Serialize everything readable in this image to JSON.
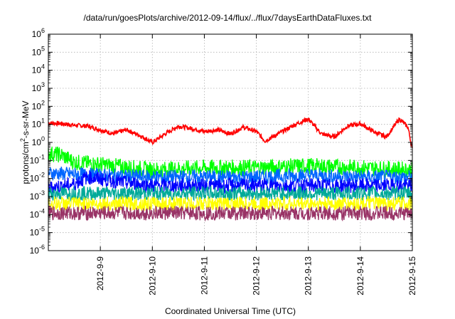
{
  "chart_data": {
    "type": "line",
    "title": "/data/run/goesPlots/archive/2012-09-14/flux/../flux/7daysEarthDataFluxes.txt",
    "xlabel": "Coordinated Universal Time (UTC)",
    "ylabel": "protons/cm²-s-sr-MeV",
    "ylabel_parts": {
      "pre": "protons/cm",
      "sup": "2",
      "post": "-s-sr-MeV"
    },
    "y_scale": "log",
    "ylim": [
      1e-06,
      1000000.0
    ],
    "y_ticks": [
      {
        "value": 1e-06,
        "base": "10",
        "exp": "-6"
      },
      {
        "value": 1e-05,
        "base": "10",
        "exp": "-5"
      },
      {
        "value": 0.0001,
        "base": "10",
        "exp": "-4"
      },
      {
        "value": 0.001,
        "base": "10",
        "exp": "-3"
      },
      {
        "value": 0.01,
        "base": "10",
        "exp": "-2"
      },
      {
        "value": 0.1,
        "base": "10",
        "exp": "-1"
      },
      {
        "value": 1,
        "base": "10",
        "exp": "0"
      },
      {
        "value": 10,
        "base": "10",
        "exp": "1"
      },
      {
        "value": 100,
        "base": "10",
        "exp": "2"
      },
      {
        "value": 1000,
        "base": "10",
        "exp": "3"
      },
      {
        "value": 10000,
        "base": "10",
        "exp": "4"
      },
      {
        "value": 100000,
        "base": "10",
        "exp": "5"
      },
      {
        "value": 1000000,
        "base": "10",
        "exp": "6"
      }
    ],
    "xlim": [
      "2012-09-08T00:00",
      "2012-09-15T00:00"
    ],
    "x_ticks": [
      "2012-9-9",
      "2012-9-10",
      "2012-9-11",
      "2012-9-12",
      "2012-9-13",
      "2012-9-14",
      "2012-9-15"
    ],
    "x_tick_values": [
      "2012-09-09",
      "2012-09-10",
      "2012-09-11",
      "2012-09-12",
      "2012-09-13",
      "2012-09-14",
      "2012-09-15"
    ],
    "grid": true,
    "series": [
      {
        "color": "#ff0000",
        "points": [
          [
            "2012-09-08T00:00",
            12
          ],
          [
            "2012-09-08T06:00",
            11
          ],
          [
            "2012-09-08T12:00",
            9
          ],
          [
            "2012-09-08T18:00",
            8
          ],
          [
            "2012-09-09T00:00",
            5
          ],
          [
            "2012-09-09T06:00",
            3
          ],
          [
            "2012-09-09T12:00",
            5
          ],
          [
            "2012-09-09T18:00",
            2.5
          ],
          [
            "2012-09-10T00:00",
            1.0
          ],
          [
            "2012-09-10T06:00",
            3
          ],
          [
            "2012-09-10T12:00",
            8
          ],
          [
            "2012-09-10T18:00",
            6
          ],
          [
            "2012-09-11T00:00",
            4
          ],
          [
            "2012-09-11T06:00",
            5
          ],
          [
            "2012-09-11T12:00",
            3
          ],
          [
            "2012-09-11T18:00",
            7
          ],
          [
            "2012-09-12T00:00",
            4
          ],
          [
            "2012-09-12T04:00",
            1.2
          ],
          [
            "2012-09-12T12:00",
            4
          ],
          [
            "2012-09-12T18:00",
            10
          ],
          [
            "2012-09-13T00:00",
            20
          ],
          [
            "2012-09-13T06:00",
            3
          ],
          [
            "2012-09-13T12:00",
            2
          ],
          [
            "2012-09-13T18:00",
            8
          ],
          [
            "2012-09-14T00:00",
            11
          ],
          [
            "2012-09-14T06:00",
            4
          ],
          [
            "2012-09-14T12:00",
            2
          ],
          [
            "2012-09-14T18:00",
            20
          ],
          [
            "2012-09-14T22:00",
            7
          ],
          [
            "2012-09-15T00:00",
            0.4
          ]
        ]
      },
      {
        "color": "#00ff00",
        "points": [
          [
            "2012-09-08T00:00",
            0.25
          ],
          [
            "2012-09-08T06:00",
            0.2
          ],
          [
            "2012-09-08T12:00",
            0.08
          ],
          [
            "2012-09-09T00:00",
            0.06
          ],
          [
            "2012-09-10T00:00",
            0.03
          ],
          [
            "2012-09-11T00:00",
            0.04
          ],
          [
            "2012-09-12T00:00",
            0.04
          ],
          [
            "2012-09-13T00:00",
            0.05
          ],
          [
            "2012-09-14T00:00",
            0.04
          ],
          [
            "2012-09-15T00:00",
            0.03
          ]
        ]
      },
      {
        "color": "#0066ff",
        "points": [
          [
            "2012-09-08T00:00",
            0.02
          ],
          [
            "2012-09-09T00:00",
            0.015
          ],
          [
            "2012-09-10T00:00",
            0.012
          ],
          [
            "2012-09-11T00:00",
            0.012
          ],
          [
            "2012-09-12T00:00",
            0.012
          ],
          [
            "2012-09-13T00:00",
            0.015
          ],
          [
            "2012-09-14T00:00",
            0.012
          ],
          [
            "2012-09-15T00:00",
            0.012
          ]
        ]
      },
      {
        "color": "#0000ff",
        "points": [
          [
            "2012-09-08T00:00",
            0.003
          ],
          [
            "2012-09-08T12:00",
            0.005
          ],
          [
            "2012-09-08T18:00",
            0.012
          ],
          [
            "2012-09-09T06:00",
            0.007
          ],
          [
            "2012-09-10T00:00",
            0.004
          ],
          [
            "2012-09-11T00:00",
            0.004
          ],
          [
            "2012-09-12T00:00",
            0.004
          ],
          [
            "2012-09-13T00:00",
            0.004
          ],
          [
            "2012-09-14T00:00",
            0.004
          ],
          [
            "2012-09-15T00:00",
            0.004
          ]
        ]
      },
      {
        "color": "#00aa99",
        "points": [
          [
            "2012-09-08T00:00",
            0.0015
          ],
          [
            "2012-09-09T00:00",
            0.0015
          ],
          [
            "2012-09-10T00:00",
            0.0015
          ],
          [
            "2012-09-11T00:00",
            0.0015
          ],
          [
            "2012-09-12T00:00",
            0.0015
          ],
          [
            "2012-09-13T00:00",
            0.0015
          ],
          [
            "2012-09-14T00:00",
            0.0015
          ],
          [
            "2012-09-15T00:00",
            0.0015
          ]
        ]
      },
      {
        "color": "#ffff00",
        "points": [
          [
            "2012-09-08T00:00",
            0.0004
          ],
          [
            "2012-09-09T00:00",
            0.0004
          ],
          [
            "2012-09-10T00:00",
            0.0004
          ],
          [
            "2012-09-11T00:00",
            0.0004
          ],
          [
            "2012-09-12T00:00",
            0.0004
          ],
          [
            "2012-09-13T00:00",
            0.0004
          ],
          [
            "2012-09-14T00:00",
            0.0004
          ],
          [
            "2012-09-15T00:00",
            0.0004
          ]
        ]
      },
      {
        "color": "#993366",
        "points": [
          [
            "2012-09-08T00:00",
            0.00012
          ],
          [
            "2012-09-09T00:00",
            0.00012
          ],
          [
            "2012-09-10T00:00",
            0.00012
          ],
          [
            "2012-09-11T00:00",
            0.00012
          ],
          [
            "2012-09-12T00:00",
            0.00012
          ],
          [
            "2012-09-13T00:00",
            0.00012
          ],
          [
            "2012-09-14T00:00",
            0.00012
          ],
          [
            "2012-09-15T00:00",
            0.00012
          ]
        ]
      }
    ]
  }
}
